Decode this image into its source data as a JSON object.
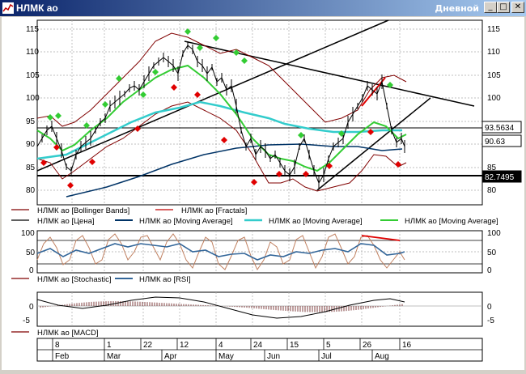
{
  "window": {
    "title": "НЛМК ао",
    "timeframe": "Дневной",
    "minimize_glyph": "_",
    "maximize_glyph": "□",
    "close_glyph": "✕"
  },
  "price_panel": {
    "axis_ticks": [
      "115",
      "110",
      "105",
      "100",
      "95",
      "90",
      "85",
      "80"
    ],
    "last_price_label": "90.63",
    "resistance_label": "93.5634",
    "support_label": "82.7495",
    "legend": [
      {
        "text": "НЛМК ао [Bollinger Bands]",
        "color": "#800000"
      },
      {
        "text": "НЛМК ао [Fractals]",
        "color": "#c00000"
      },
      {
        "text": "НЛМК ао [Цена]",
        "color": "#000000"
      },
      {
        "text": "НЛМК ао [Moving Average]",
        "color": "#003366"
      },
      {
        "text": "НЛМК ао [Moving Average]",
        "color": "#33cccc"
      },
      {
        "text": "НЛМК ао [Moving Average]",
        "color": "#33cc33"
      }
    ]
  },
  "oscillator_panel": {
    "axis_ticks": [
      "100",
      "50",
      "0"
    ],
    "legend": [
      {
        "text": "НЛМК ао [Stochastic]",
        "color": "#800000"
      },
      {
        "text": "НЛМК ао [RSI]",
        "color": "#336699"
      }
    ]
  },
  "macd_panel": {
    "axis_ticks": [
      "0",
      "-5"
    ],
    "legend": [
      {
        "text": "НЛМК ао [MACD]",
        "color": "#800000"
      }
    ]
  },
  "time_axis": {
    "days": [
      "8",
      "1",
      "22",
      "12",
      "4",
      "24",
      "15",
      "5",
      "26",
      "16"
    ],
    "months": [
      "Feb",
      "Mar",
      "Apr",
      "May",
      "Jun",
      "Jul",
      "Aug"
    ]
  },
  "chart_data": {
    "type": "candlestick",
    "series": [
      {
        "name": "НЛМК ао [Цена]",
        "points": [
          [
            0,
            88.5
          ],
          [
            10,
            91
          ],
          [
            18,
            93.5
          ],
          [
            26,
            89
          ],
          [
            34,
            85
          ],
          [
            42,
            82
          ],
          [
            50,
            86.5
          ],
          [
            58,
            88
          ],
          [
            66,
            89
          ],
          [
            74,
            92
          ],
          [
            82,
            94
          ],
          [
            90,
            96
          ],
          [
            98,
            99
          ],
          [
            106,
            101
          ],
          [
            114,
            103
          ],
          [
            122,
            107
          ],
          [
            130,
            110
          ],
          [
            138,
            112
          ],
          [
            146,
            114
          ],
          [
            154,
            111
          ],
          [
            162,
            108
          ],
          [
            170,
            109
          ],
          [
            178,
            106
          ],
          [
            186,
            107
          ],
          [
            194,
            105
          ],
          [
            202,
            99
          ],
          [
            210,
            94
          ],
          [
            218,
            97
          ],
          [
            226,
            96
          ],
          [
            234,
            89
          ],
          [
            242,
            86
          ],
          [
            250,
            90
          ],
          [
            258,
            86
          ],
          [
            266,
            84
          ],
          [
            274,
            87
          ],
          [
            282,
            86
          ],
          [
            290,
            84
          ],
          [
            298,
            83
          ],
          [
            306,
            81
          ],
          [
            314,
            80
          ],
          [
            322,
            84
          ],
          [
            330,
            87
          ],
          [
            338,
            86.5
          ],
          [
            346,
            87
          ],
          [
            354,
            88
          ],
          [
            362,
            89
          ],
          [
            370,
            92
          ],
          [
            378,
            97
          ],
          [
            386,
            99
          ],
          [
            394,
            102
          ],
          [
            402,
            98
          ],
          [
            410,
            95
          ],
          [
            418,
            90
          ],
          [
            426,
            89
          ],
          [
            434,
            90.6
          ]
        ]
      },
      {
        "name": "НЛМК ао [Moving Average]",
        "color": "#003366",
        "points": [
          [
            30,
            80
          ],
          [
            100,
            83
          ],
          [
            160,
            86
          ],
          [
            200,
            88
          ],
          [
            240,
            89.5
          ],
          [
            280,
            90
          ],
          [
            330,
            90.5
          ],
          [
            380,
            90.5
          ],
          [
            434,
            90
          ]
        ]
      },
      {
        "name": "НЛМК ао [Moving Average]",
        "color": "#33cccc",
        "points": [
          [
            0,
            86
          ],
          [
            60,
            88
          ],
          [
            120,
            91
          ],
          [
            160,
            95
          ],
          [
            200,
            98.5
          ],
          [
            230,
            97
          ],
          [
            270,
            95
          ],
          [
            310,
            93
          ],
          [
            350,
            92
          ],
          [
            390,
            91.5
          ],
          [
            434,
            92.5
          ]
        ]
      },
      {
        "name": "НЛМК ао [Moving Average]",
        "color": "#33cc33",
        "points": [
          [
            0,
            90
          ],
          [
            30,
            87
          ],
          [
            60,
            89
          ],
          [
            90,
            94
          ],
          [
            120,
            100
          ],
          [
            150,
            105
          ],
          [
            175,
            107
          ],
          [
            200,
            104
          ],
          [
            230,
            97
          ],
          [
            260,
            88
          ],
          [
            290,
            85
          ],
          [
            320,
            83
          ],
          [
            350,
            86
          ],
          [
            380,
            91
          ],
          [
            410,
            96
          ],
          [
            434,
            93
          ]
        ]
      }
    ],
    "levels": [
      {
        "label": "93.5634",
        "value": 93.5634
      },
      {
        "label": "82.7495",
        "value": 82.7495
      }
    ],
    "ylim": [
      78,
      117
    ],
    "xlabel": "",
    "ylabel": ""
  }
}
